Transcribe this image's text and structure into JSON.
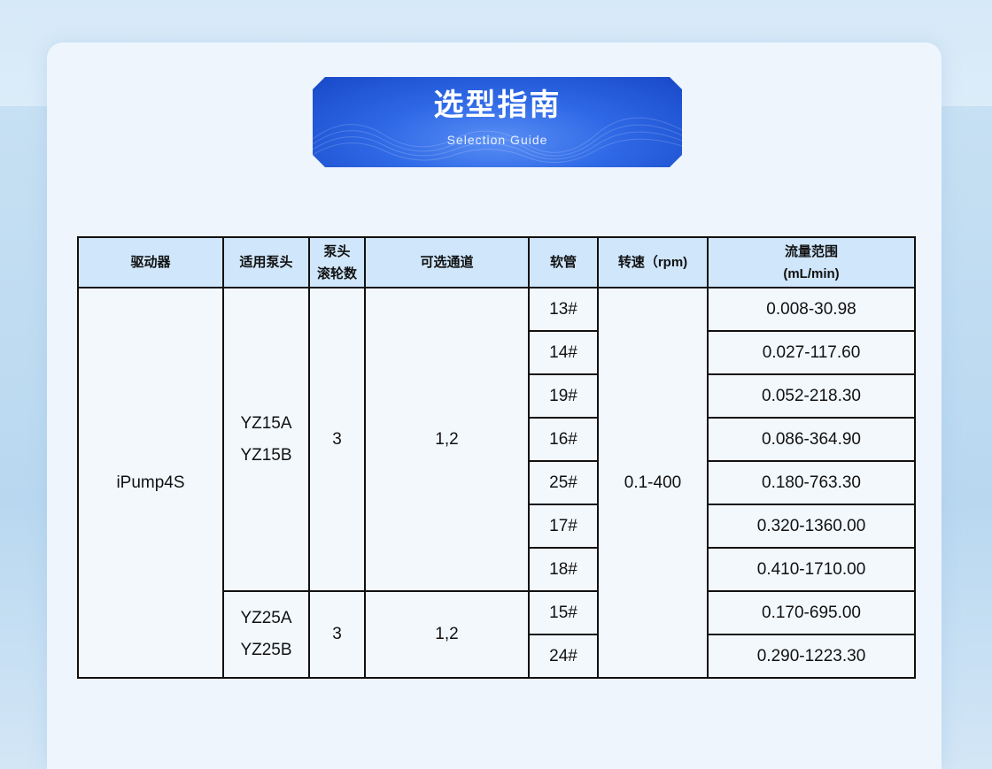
{
  "banner": {
    "title": "选型指南",
    "subtitle": "Selection Guide"
  },
  "table": {
    "headers": [
      "驱动器",
      "适用泵头",
      "泵头",
      "滚轮数",
      "可选通道",
      "软管",
      "转速（rpm)",
      "流量范围",
      "(mL/min)"
    ],
    "driver": "iPump4S",
    "speed": "0.1-400",
    "groups": [
      {
        "heads": [
          "YZ15A",
          "YZ15B"
        ],
        "rollers": "3",
        "channels": "1,2",
        "rows": [
          {
            "tube": "13#",
            "flow": "0.008-30.98"
          },
          {
            "tube": "14#",
            "flow": "0.027-117.60"
          },
          {
            "tube": "19#",
            "flow": "0.052-218.30"
          },
          {
            "tube": "16#",
            "flow": "0.086-364.90"
          },
          {
            "tube": "25#",
            "flow": "0.180-763.30"
          },
          {
            "tube": "17#",
            "flow": "0.320-1360.00"
          },
          {
            "tube": "18#",
            "flow": "0.410-1710.00"
          }
        ]
      },
      {
        "heads": [
          "YZ25A",
          "YZ25B"
        ],
        "rollers": "3",
        "channels": "1,2",
        "rows": [
          {
            "tube": "15#",
            "flow": "0.170-695.00"
          },
          {
            "tube": "24#",
            "flow": "0.290-1223.30"
          }
        ]
      }
    ]
  }
}
